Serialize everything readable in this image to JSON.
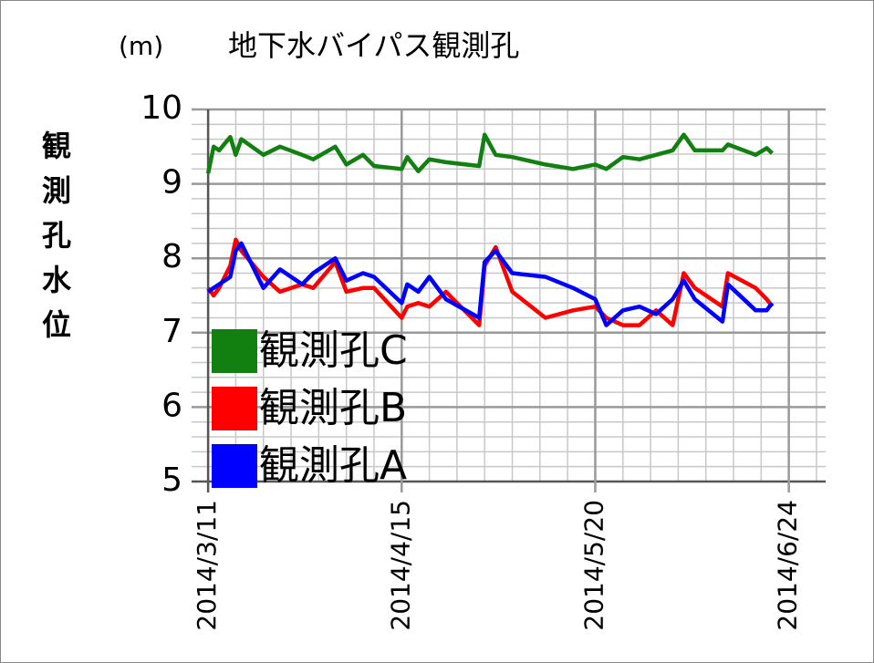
{
  "chart_data": {
    "type": "line",
    "title": "地下水バイパス観測孔",
    "y_unit": "(m)",
    "ylabel": "観測孔水位",
    "x": [
      "2014-03-11",
      "2014-03-12",
      "2014-03-13",
      "2014-03-15",
      "2014-03-16",
      "2014-03-17",
      "2014-03-21",
      "2014-03-24",
      "2014-03-28",
      "2014-03-30",
      "2014-04-03",
      "2014-04-05",
      "2014-04-08",
      "2014-04-10",
      "2014-04-15",
      "2014-04-16",
      "2014-04-18",
      "2014-04-20",
      "2014-04-23",
      "2014-04-29",
      "2014-04-30",
      "2014-05-02",
      "2014-05-05",
      "2014-05-11",
      "2014-05-16",
      "2014-05-20",
      "2014-05-22",
      "2014-05-25",
      "2014-05-28",
      "2014-05-31",
      "2014-06-03",
      "2014-06-05",
      "2014-06-07",
      "2014-06-12",
      "2014-06-13",
      "2014-06-18",
      "2014-06-20",
      "2014-06-21"
    ],
    "series": [
      {
        "name": "観測孔C",
        "color": "#118011",
        "values": [
          9.14,
          9.5,
          9.45,
          9.63,
          9.39,
          9.6,
          9.39,
          9.5,
          9.39,
          9.33,
          9.5,
          9.26,
          9.39,
          9.24,
          9.2,
          9.36,
          9.17,
          9.33,
          9.29,
          9.24,
          9.66,
          9.39,
          9.36,
          9.26,
          9.2,
          9.26,
          9.2,
          9.36,
          9.33,
          9.39,
          9.45,
          9.66,
          9.45,
          9.45,
          9.53,
          9.39,
          9.48,
          9.41
        ]
      },
      {
        "name": "観測孔B",
        "color": "#ff0000",
        "values": [
          7.6,
          7.5,
          7.6,
          7.9,
          8.25,
          8.1,
          7.75,
          7.55,
          7.65,
          7.6,
          7.95,
          7.55,
          7.6,
          7.6,
          7.2,
          7.35,
          7.4,
          7.35,
          7.55,
          7.1,
          7.9,
          8.15,
          7.55,
          7.2,
          7.3,
          7.35,
          7.2,
          7.1,
          7.1,
          7.3,
          7.1,
          7.8,
          7.6,
          7.35,
          7.8,
          7.6,
          7.45,
          7.35
        ]
      },
      {
        "name": "観測孔A",
        "color": "#0000ff",
        "values": [
          7.55,
          7.6,
          7.65,
          7.75,
          8.1,
          8.2,
          7.6,
          7.85,
          7.65,
          7.8,
          8.0,
          7.7,
          7.8,
          7.75,
          7.4,
          7.65,
          7.55,
          7.75,
          7.45,
          7.2,
          7.95,
          8.1,
          7.8,
          7.75,
          7.6,
          7.45,
          7.1,
          7.3,
          7.35,
          7.25,
          7.45,
          7.7,
          7.45,
          7.15,
          7.65,
          7.3,
          7.3,
          7.4
        ]
      }
    ],
    "xlim": [
      "2014-03-09",
      "2014-06-30"
    ],
    "xticks": [
      {
        "value": "2014-03-11",
        "label": "2014/3/11"
      },
      {
        "value": "2014-04-15",
        "label": "2014/4/15"
      },
      {
        "value": "2014-05-20",
        "label": "2014/5/20"
      },
      {
        "value": "2014-06-24",
        "label": "2014/6/24"
      }
    ],
    "minor_xticks": [
      "2014-03-16",
      "2014-03-21",
      "2014-03-26",
      "2014-03-31",
      "2014-04-05",
      "2014-04-10",
      "2014-04-20",
      "2014-04-25",
      "2014-04-30",
      "2014-05-05",
      "2014-05-10",
      "2014-05-15",
      "2014-05-25",
      "2014-05-30",
      "2014-06-04",
      "2014-06-09",
      "2014-06-14",
      "2014-06-19",
      "2014-06-29"
    ],
    "ylim": [
      5,
      10
    ],
    "yticks": [
      5,
      6,
      7,
      8,
      9,
      10
    ],
    "minor_yticks": [
      5.2,
      5.4,
      5.6,
      5.8,
      6.2,
      6.4,
      6.6,
      6.8,
      7.2,
      7.4,
      7.6,
      7.8,
      8.2,
      8.4,
      8.6,
      8.8,
      9.2,
      9.4,
      9.6,
      9.8
    ],
    "grid": true,
    "legend": "lower-left"
  }
}
